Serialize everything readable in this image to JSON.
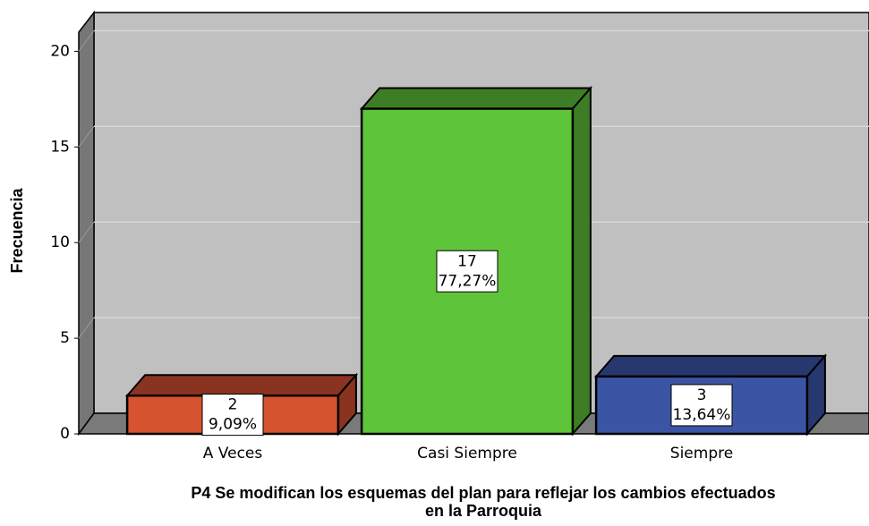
{
  "chart_data": {
    "type": "bar",
    "y_label": "Frecuencia",
    "x_label_lines": [
      "P4 Se modifican los esquemas del plan para reflejar los cambios efectuados",
      "en la Parroquia"
    ],
    "categories": [
      "A Veces",
      "Casi Siempre",
      "Siempre"
    ],
    "values": [
      2,
      17,
      3
    ],
    "percent_labels": [
      "9,09%",
      "77,27%",
      "13,64%"
    ],
    "colors": [
      "#d6532f",
      "#5ec43a",
      "#3b54a4"
    ],
    "side_colors": [
      "#8a3320",
      "#3d7d26",
      "#26386e"
    ],
    "ylim": [
      0,
      21
    ],
    "yticks": [
      0,
      5,
      10,
      15,
      20
    ],
    "grid": true
  }
}
